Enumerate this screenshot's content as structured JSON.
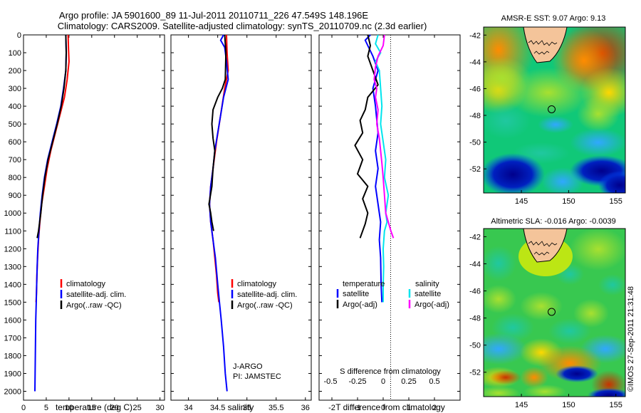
{
  "header": {
    "title_line1": "Argo profile: JA 5901600_89 11-Jul-2011 20110711_226 47.549S 148.196E",
    "title_line2": "Climatology: CARS2009. Satellite-adjusted climatology: synTS_20110709.nc (2.3d earlier)"
  },
  "panel_temperature": {
    "xlabel": "temperature (deg C)",
    "legend": [
      "climatology",
      "satellite-adj. clim.",
      "Argo(..raw -QC)"
    ]
  },
  "panel_salinity": {
    "xlabel": "salinity",
    "legend": [
      "climatology",
      "satellite-adj. clim.",
      "Argo(..raw -QC)"
    ],
    "note_line1": "J-ARGO",
    "note_line2": "PI: JAMSTEC"
  },
  "panel_difference": {
    "xlabel_top": "S difference from climatology",
    "xlabel_bottom": "T difference from climatology",
    "legend_temperature_title": "temperature",
    "legend_salinity_title": "salinity",
    "legend_temperature": [
      "satellite",
      "Argo(-adj)"
    ],
    "legend_salinity": [
      "satellite",
      "Argo(-adj)"
    ]
  },
  "map_sst": {
    "title": "AMSR-E SST: 9.07 Argo: 9.13"
  },
  "map_sla": {
    "title": "Altimetric SLA: -0.016 Argo: -0.0039"
  },
  "watermark": "©IMOS 27-Sep-2011 21:31:48",
  "colors": {
    "climatology": "#ff0000",
    "satellite": "#0000ff",
    "argo": "#000000",
    "salinity_satellite": "#00e5ee",
    "salinity_argo": "#ff00ff"
  },
  "chart_data": [
    {
      "type": "line",
      "name": "temperature-profile",
      "xlim": [
        0,
        31
      ],
      "ylim": [
        0,
        2050
      ],
      "y_reversed": true,
      "xticks": [
        0,
        5,
        10,
        15,
        20,
        25,
        30
      ],
      "yticks": [
        0,
        100,
        200,
        300,
        400,
        500,
        600,
        700,
        800,
        900,
        1000,
        1100,
        1200,
        1300,
        1400,
        1500,
        1600,
        1700,
        1800,
        1900,
        2000
      ],
      "series": [
        {
          "name": "climatology",
          "color": "#ff0000",
          "points": [
            [
              9.8,
              0
            ],
            [
              9.9,
              80
            ],
            [
              10.0,
              150
            ],
            [
              9.6,
              250
            ],
            [
              9.0,
              350
            ],
            [
              8.0,
              450
            ],
            [
              7.0,
              550
            ],
            [
              6.0,
              650
            ],
            [
              5.2,
              750
            ],
            [
              4.6,
              850
            ],
            [
              4.0,
              950
            ],
            [
              3.6,
              1050
            ],
            [
              3.3,
              1150
            ],
            [
              3.1,
              1250
            ],
            [
              2.95,
              1350
            ],
            [
              2.85,
              1450
            ],
            [
              2.75,
              1500
            ]
          ]
        },
        {
          "name": "satellite-adj. clim.",
          "color": "#0000ff",
          "points": [
            [
              9.3,
              0
            ],
            [
              9.4,
              100
            ],
            [
              9.3,
              200
            ],
            [
              8.8,
              300
            ],
            [
              8.2,
              400
            ],
            [
              7.3,
              500
            ],
            [
              6.3,
              600
            ],
            [
              5.3,
              700
            ],
            [
              4.6,
              800
            ],
            [
              4.1,
              900
            ],
            [
              3.7,
              1000
            ],
            [
              3.4,
              1100
            ],
            [
              3.15,
              1200
            ],
            [
              3.0,
              1300
            ],
            [
              2.9,
              1400
            ],
            [
              2.8,
              1500
            ],
            [
              2.7,
              1600
            ],
            [
              2.65,
              1700
            ],
            [
              2.6,
              1800
            ],
            [
              2.55,
              1900
            ],
            [
              2.5,
              2000
            ]
          ]
        },
        {
          "name": "Argo(..raw -QC)",
          "color": "#000000",
          "points": [
            [
              9.3,
              0
            ],
            [
              9.4,
              100
            ],
            [
              9.3,
              200
            ],
            [
              8.9,
              300
            ],
            [
              8.3,
              400
            ],
            [
              7.4,
              500
            ],
            [
              6.4,
              600
            ],
            [
              5.4,
              700
            ],
            [
              4.7,
              800
            ],
            [
              4.2,
              900
            ],
            [
              3.8,
              1000
            ],
            [
              3.3,
              1100
            ],
            [
              3.0,
              1140
            ]
          ]
        }
      ]
    },
    {
      "type": "line",
      "name": "salinity-profile",
      "xlim": [
        33.7,
        36.1
      ],
      "ylim": [
        0,
        2050
      ],
      "y_reversed": true,
      "xticks": [
        34,
        34.5,
        35,
        35.5,
        36
      ],
      "series": [
        {
          "name": "climatology",
          "color": "#ff0000",
          "points": [
            [
              34.65,
              0
            ],
            [
              34.66,
              100
            ],
            [
              34.68,
              200
            ],
            [
              34.62,
              300
            ],
            [
              34.55,
              450
            ],
            [
              34.48,
              600
            ],
            [
              34.42,
              750
            ],
            [
              34.38,
              850
            ],
            [
              34.36,
              950
            ],
            [
              34.38,
              1050
            ],
            [
              34.42,
              1150
            ],
            [
              34.45,
              1250
            ],
            [
              34.48,
              1350
            ],
            [
              34.5,
              1450
            ],
            [
              34.52,
              1500
            ]
          ]
        },
        {
          "name": "satellite-adj. clim.",
          "color": "#0000ff",
          "points": [
            [
              34.6,
              0
            ],
            [
              34.55,
              30
            ],
            [
              34.62,
              70
            ],
            [
              34.65,
              150
            ],
            [
              34.68,
              250
            ],
            [
              34.6,
              350
            ],
            [
              34.55,
              450
            ],
            [
              34.5,
              550
            ],
            [
              34.45,
              650
            ],
            [
              34.42,
              750
            ],
            [
              34.38,
              850
            ],
            [
              34.36,
              950
            ],
            [
              34.38,
              1050
            ],
            [
              34.42,
              1150
            ],
            [
              34.46,
              1250
            ],
            [
              34.5,
              1400
            ],
            [
              34.53,
              1500
            ],
            [
              34.56,
              1600
            ],
            [
              34.6,
              1750
            ],
            [
              34.63,
              1900
            ],
            [
              34.66,
              2000
            ]
          ]
        },
        {
          "name": "Argo(..raw -QC)",
          "color": "#000000",
          "points": [
            [
              34.62,
              0
            ],
            [
              34.64,
              100
            ],
            [
              34.63,
              250
            ],
            [
              34.58,
              300
            ],
            [
              34.5,
              350
            ],
            [
              34.42,
              420
            ],
            [
              34.4,
              500
            ],
            [
              34.42,
              580
            ],
            [
              34.45,
              650
            ],
            [
              34.42,
              750
            ],
            [
              34.4,
              850
            ],
            [
              34.35,
              950
            ],
            [
              34.38,
              1000
            ],
            [
              34.4,
              1050
            ],
            [
              34.43,
              1100
            ]
          ]
        }
      ]
    },
    {
      "type": "line",
      "name": "difference-profile",
      "xlim": [
        -2.5,
        3.0
      ],
      "ylim": [
        0,
        2050
      ],
      "y_reversed": true,
      "xticks_T": [
        -2,
        -1,
        0,
        1,
        2
      ],
      "xtick_labels_S": [
        "-0.5",
        "-0.25",
        "0",
        "0.25",
        "0.5"
      ],
      "series": [
        {
          "name": "temperature satellite",
          "color": "#0000ff",
          "points": [
            [
              -0.5,
              0
            ],
            [
              -0.7,
              30
            ],
            [
              -0.6,
              60
            ],
            [
              -0.4,
              120
            ],
            [
              -0.2,
              200
            ],
            [
              -0.4,
              300
            ],
            [
              -0.3,
              400
            ],
            [
              -0.2,
              550
            ],
            [
              -0.3,
              650
            ],
            [
              -0.2,
              750
            ],
            [
              -0.3,
              850
            ],
            [
              -0.2,
              950
            ],
            [
              -0.1,
              1050
            ],
            [
              -0.15,
              1150
            ],
            [
              -0.1,
              1250
            ],
            [
              -0.08,
              1400
            ],
            [
              -0.05,
              1500
            ]
          ]
        },
        {
          "name": "temperature Argo(-adj)",
          "color": "#000000",
          "points": [
            [
              -0.6,
              0
            ],
            [
              -0.5,
              60
            ],
            [
              -0.6,
              120
            ],
            [
              -0.4,
              200
            ],
            [
              -0.2,
              280
            ],
            [
              -0.6,
              350
            ],
            [
              -0.7,
              420
            ],
            [
              -0.9,
              480
            ],
            [
              -0.8,
              550
            ],
            [
              -1.1,
              620
            ],
            [
              -0.8,
              700
            ],
            [
              -1.0,
              780
            ],
            [
              -0.6,
              850
            ],
            [
              -0.8,
              920
            ],
            [
              -0.6,
              1000
            ],
            [
              -0.7,
              1060
            ],
            [
              -0.8,
              1100
            ],
            [
              -0.9,
              1140
            ]
          ]
        },
        {
          "name": "salinity satellite",
          "color": "#00e5ee",
          "points": [
            [
              -0.2,
              0
            ],
            [
              -0.3,
              50
            ],
            [
              -0.1,
              100
            ],
            [
              -0.3,
              150
            ],
            [
              -0.15,
              200
            ],
            [
              -0.1,
              300
            ],
            [
              -0.05,
              400
            ],
            [
              -0.1,
              500
            ],
            [
              0.0,
              600
            ],
            [
              0.1,
              700
            ],
            [
              0.05,
              800
            ],
            [
              0.2,
              900
            ],
            [
              0.1,
              1000
            ],
            [
              0.15,
              1050
            ],
            [
              0.05,
              1100
            ],
            [
              0.0,
              1200
            ],
            [
              0.02,
              1300
            ],
            [
              0.0,
              1400
            ],
            [
              0.0,
              1500
            ]
          ]
        },
        {
          "name": "salinity Argo(-adj)",
          "color": "#ff00ff",
          "points": [
            [
              0.05,
              0
            ],
            [
              0.0,
              60
            ],
            [
              -0.2,
              120
            ],
            [
              -0.3,
              180
            ],
            [
              -0.35,
              250
            ],
            [
              -0.25,
              300
            ],
            [
              -0.3,
              350
            ],
            [
              -0.2,
              420
            ],
            [
              -0.25,
              500
            ],
            [
              -0.15,
              580
            ],
            [
              -0.1,
              650
            ],
            [
              -0.05,
              720
            ],
            [
              0.0,
              800
            ],
            [
              0.05,
              900
            ],
            [
              0.1,
              1000
            ],
            [
              0.2,
              1050
            ],
            [
              0.3,
              1100
            ],
            [
              0.4,
              1140
            ]
          ]
        }
      ]
    },
    {
      "type": "heatmap",
      "name": "sst-map",
      "xlim": [
        141,
        156
      ],
      "ylim": [
        -53.8,
        -41.4
      ],
      "xticks": [
        145,
        150,
        155
      ],
      "yticks": [
        -42,
        -44,
        -46,
        -48,
        -50,
        -52
      ],
      "argo_marker": [
        148.196,
        -47.549
      ]
    },
    {
      "type": "heatmap",
      "name": "sla-map",
      "xlim": [
        141,
        156
      ],
      "ylim": [
        -53.8,
        -41.4
      ],
      "xticks": [
        145,
        150,
        155
      ],
      "yticks": [
        -42,
        -44,
        -46,
        -48,
        -50,
        -52
      ],
      "argo_marker": [
        148.196,
        -47.549
      ]
    }
  ]
}
